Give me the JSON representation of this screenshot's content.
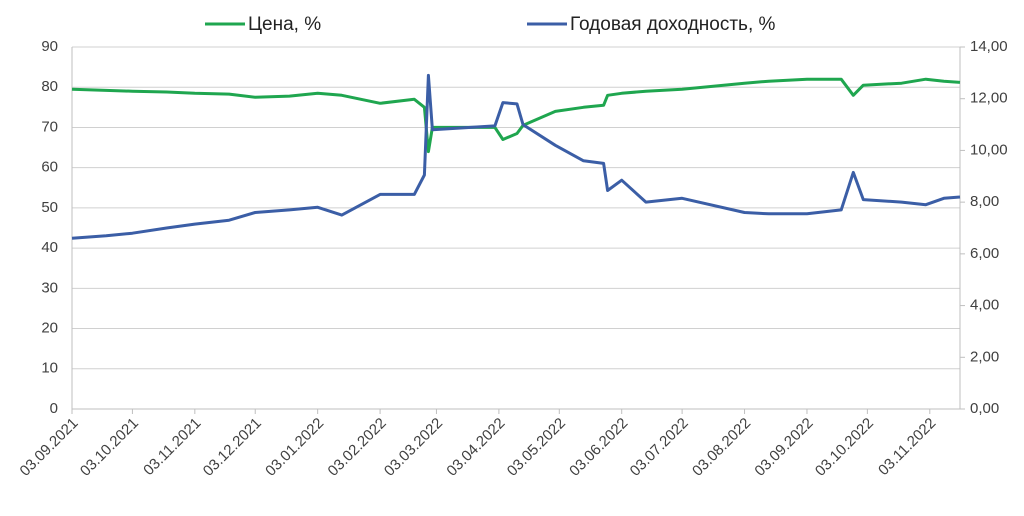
{
  "chart_data": {
    "type": "line",
    "x": [
      "03.09.2021",
      "20.09.2021",
      "03.10.2021",
      "20.10.2021",
      "03.11.2021",
      "20.11.2021",
      "03.12.2021",
      "20.12.2021",
      "03.01.2022",
      "15.01.2022",
      "03.02.2022",
      "20.02.2022",
      "25.02.2022",
      "27.02.2022",
      "01.03.2022",
      "01.04.2022",
      "05.04.2022",
      "12.04.2022",
      "15.04.2022",
      "01.05.2022",
      "15.05.2022",
      "25.05.2022",
      "27.05.2022",
      "03.06.2022",
      "15.06.2022",
      "03.07.2022",
      "03.08.2022",
      "15.08.2022",
      "03.09.2022",
      "20.09.2022",
      "26.09.2022",
      "01.10.2022",
      "20.10.2022",
      "01.11.2022",
      "10.11.2022",
      "18.11.2022"
    ],
    "xlim": [
      "03.09.2021",
      "18.11.2022"
    ],
    "xticks": [
      "03.09.2021",
      "03.10.2021",
      "03.11.2021",
      "03.12.2021",
      "03.01.2022",
      "03.02.2022",
      "03.03.2022",
      "03.04.2022",
      "03.05.2022",
      "03.06.2022",
      "03.07.2022",
      "03.08.2022",
      "03.09.2022",
      "03.10.2022",
      "03.11.2022"
    ],
    "series": [
      {
        "name": "Цена, %",
        "color": "#1fa64f",
        "values": [
          79.5,
          79.2,
          79.0,
          78.8,
          78.5,
          78.3,
          77.5,
          77.8,
          78.5,
          78.0,
          76.0,
          77.0,
          75.0,
          64.0,
          70.0,
          70.0,
          67.0,
          68.5,
          70.5,
          74.0,
          75.0,
          75.5,
          78.0,
          78.5,
          79.0,
          79.5,
          81.0,
          81.5,
          82.0,
          82.0,
          78.0,
          80.5,
          81.0,
          82.0,
          81.5,
          81.2
        ]
      },
      {
        "name": "Годовая доходность, %",
        "color": "#3b5ea6",
        "axis": "y2",
        "values": [
          6.6,
          6.7,
          6.8,
          7.0,
          7.15,
          7.3,
          7.6,
          7.7,
          7.8,
          7.5,
          8.3,
          8.3,
          9.05,
          12.9,
          10.8,
          10.95,
          11.85,
          11.8,
          11.0,
          10.2,
          9.6,
          9.5,
          8.45,
          8.85,
          8.0,
          8.15,
          7.6,
          7.55,
          7.55,
          7.7,
          9.15,
          8.1,
          8.0,
          7.9,
          8.15,
          8.2
        ]
      }
    ],
    "ylim": [
      0,
      90
    ],
    "yticks": [
      0,
      10,
      20,
      30,
      40,
      50,
      60,
      70,
      80,
      90
    ],
    "y2lim": [
      0,
      14
    ],
    "y2ticks": [
      {
        "value": 0,
        "label": "0,00"
      },
      {
        "value": 2,
        "label": "2,00"
      },
      {
        "value": 4,
        "label": "4,00"
      },
      {
        "value": 6,
        "label": "6,00"
      },
      {
        "value": 8,
        "label": "8,00"
      },
      {
        "value": 10,
        "label": "10,00"
      },
      {
        "value": 12,
        "label": "12,00"
      },
      {
        "value": 14,
        "label": "14,00"
      }
    ],
    "grid": true,
    "legend": "top"
  }
}
